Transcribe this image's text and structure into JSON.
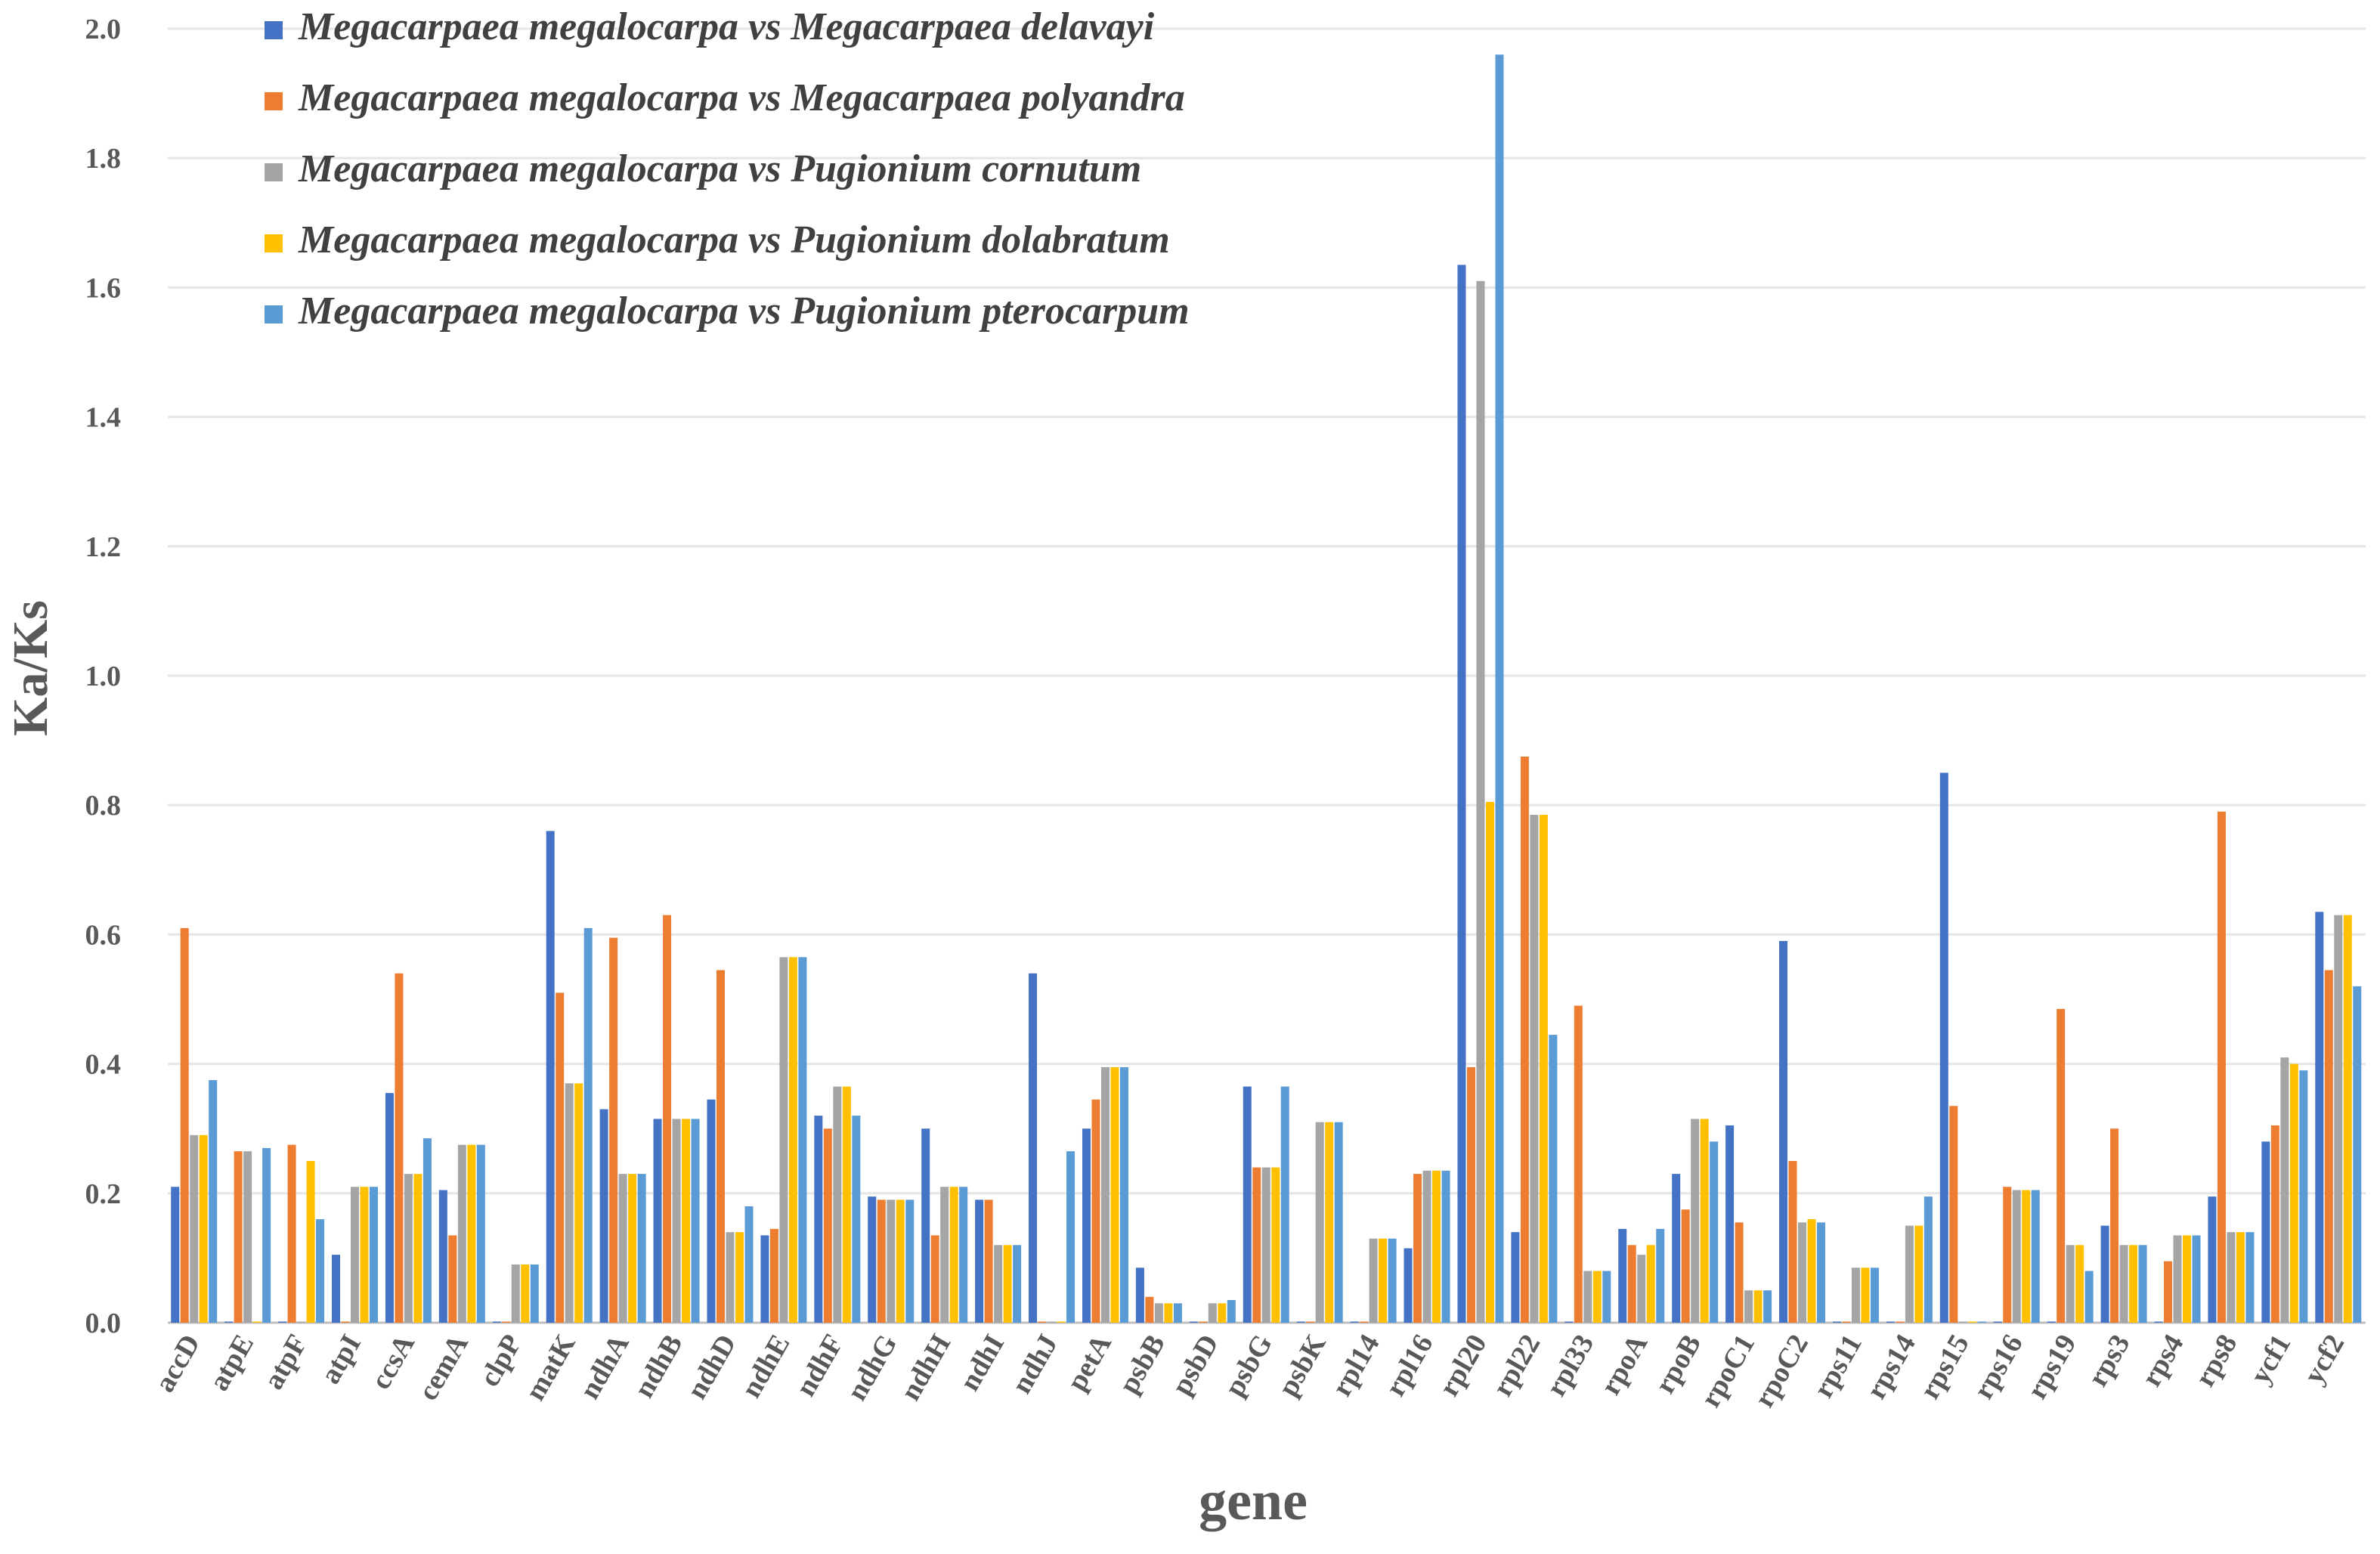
{
  "chart_data": {
    "type": "bar",
    "xlabel": "gene",
    "ylabel": "Ka/Ks",
    "ylim": [
      0,
      2.0
    ],
    "yticks": [
      "0.0",
      "0.2",
      "0.4",
      "0.6",
      "0.8",
      "1.0",
      "1.2",
      "1.4",
      "1.6",
      "1.8",
      "2.0"
    ],
    "grid": true,
    "legend_position": "top-left",
    "categories": [
      "accD",
      "atpE",
      "atpF",
      "atpI",
      "ccsA",
      "cemA",
      "clpP",
      "matK",
      "ndhA",
      "ndhB",
      "ndhD",
      "ndhE",
      "ndhF",
      "ndhG",
      "ndhH",
      "ndhI",
      "ndhJ",
      "petA",
      "psbB",
      "psbD",
      "psbG",
      "psbK",
      "rpl14",
      "rpl16",
      "rpl20",
      "rpl22",
      "rpl33",
      "rpoA",
      "rpoB",
      "rpoC1",
      "rpoC2",
      "rps11",
      "rps14",
      "rps15",
      "rps16",
      "rps19",
      "rps3",
      "rps4",
      "rps8",
      "ycf1",
      "ycf2"
    ],
    "series": [
      {
        "name": "Megacarpaea megalocarpa vs Megacarpaea delavayi",
        "color": "#4472C4",
        "values": [
          0.21,
          0,
          0,
          0.105,
          0.355,
          0.205,
          0,
          0.76,
          0.33,
          0.315,
          0.345,
          0.135,
          0.32,
          0.195,
          0.3,
          0.19,
          0.54,
          0.3,
          0.085,
          0,
          0.365,
          0,
          0,
          0.115,
          1.635,
          0.14,
          0,
          0.145,
          0.23,
          0.305,
          0.59,
          0,
          0,
          0.85,
          0,
          0,
          0.15,
          0,
          0.195,
          0.28,
          0.635
        ]
      },
      {
        "name": "Megacarpaea megalocarpa vs Megacarpaea polyandra",
        "color": "#ED7D31",
        "values": [
          0.61,
          0.265,
          0.275,
          0,
          0.54,
          0.135,
          0,
          0.51,
          0.595,
          0.63,
          0.545,
          0.145,
          0.3,
          0.19,
          0.135,
          0.19,
          0,
          0.345,
          0.04,
          0,
          0.24,
          0,
          0,
          0.23,
          0.395,
          0.875,
          0.49,
          0.12,
          0.175,
          0.155,
          0.25,
          0,
          0,
          0.335,
          0.21,
          0.485,
          0.3,
          0.095,
          0.79,
          0.305,
          0.545
        ]
      },
      {
        "name": "Megacarpaea megalocarpa vs Pugionium cornutum",
        "color": "#A5A5A5",
        "values": [
          0.29,
          0.265,
          0,
          0.21,
          0.23,
          0.275,
          0.09,
          0.37,
          0.23,
          0.315,
          0.14,
          0.565,
          0.365,
          0.19,
          0.21,
          0.12,
          0,
          0.395,
          0.03,
          0.03,
          0.24,
          0.31,
          0.13,
          0.235,
          1.61,
          0.785,
          0.08,
          0.105,
          0.315,
          0.05,
          0.155,
          0.085,
          0.15,
          0,
          0.205,
          0.12,
          0.12,
          0.135,
          0.14,
          0.41,
          0.63
        ]
      },
      {
        "name": "Megacarpaea megalocarpa vs Pugionium dolabratum",
        "color": "#FFC000",
        "values": [
          0.29,
          0,
          0.25,
          0.21,
          0.23,
          0.275,
          0.09,
          0.37,
          0.23,
          0.315,
          0.14,
          0.565,
          0.365,
          0.19,
          0.21,
          0.12,
          0,
          0.395,
          0.03,
          0.03,
          0.24,
          0.31,
          0.13,
          0.235,
          0.805,
          0.785,
          0.08,
          0.12,
          0.315,
          0.05,
          0.16,
          0.085,
          0.15,
          0,
          0.205,
          0.12,
          0.12,
          0.135,
          0.14,
          0.4,
          0.63
        ]
      },
      {
        "name": "Megacarpaea megalocarpa vs Pugionium pterocarpum",
        "color": "#5B9BD5",
        "values": [
          0.375,
          0.27,
          0.16,
          0.21,
          0.285,
          0.275,
          0.09,
          0.61,
          0.23,
          0.315,
          0.18,
          0.565,
          0.32,
          0.19,
          0.21,
          0.12,
          0.265,
          0.395,
          0.03,
          0.035,
          0.365,
          0.31,
          0.13,
          0.235,
          1.96,
          0.445,
          0.08,
          0.145,
          0.28,
          0.05,
          0.155,
          0.085,
          0.195,
          0,
          0.205,
          0.08,
          0.12,
          0.135,
          0.14,
          0.39,
          0.52
        ]
      }
    ]
  }
}
